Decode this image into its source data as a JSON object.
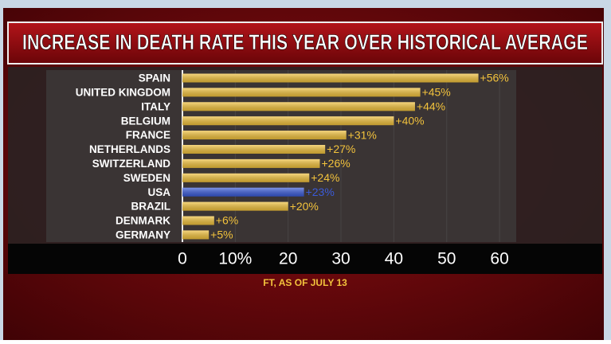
{
  "chart_data": {
    "type": "bar",
    "orientation": "horizontal",
    "title": "INCREASE IN DEATH RATE THIS YEAR OVER HISTORICAL AVERAGE",
    "source": "FT, AS OF JULY 13",
    "categories": [
      "SPAIN",
      "UNITED KINGDOM",
      "ITALY",
      "BELGIUM",
      "FRANCE",
      "NETHERLANDS",
      "SWITZERLAND",
      "SWEDEN",
      "USA",
      "BRAZIL",
      "DENMARK",
      "GERMANY"
    ],
    "values": [
      56,
      45,
      44,
      40,
      31,
      27,
      26,
      24,
      23,
      20,
      6,
      5
    ],
    "value_labels": [
      "+56%",
      "+45%",
      "+44%",
      "+40%",
      "+31%",
      "+27%",
      "+26%",
      "+24%",
      "+23%",
      "+20%",
      "+6%",
      "+5%"
    ],
    "colors": [
      "#f2c23c",
      "#f2c23c",
      "#f2c23c",
      "#f2c23c",
      "#f2c23c",
      "#f2c23c",
      "#f2c23c",
      "#f2c23c",
      "#3a5bd9",
      "#f2c23c",
      "#f2c23c",
      "#f2c23c"
    ],
    "xlim": [
      0,
      63
    ],
    "xticks": [
      0,
      {
        "value": 10,
        "label": "10%"
      },
      20,
      30,
      40,
      50,
      60
    ]
  }
}
